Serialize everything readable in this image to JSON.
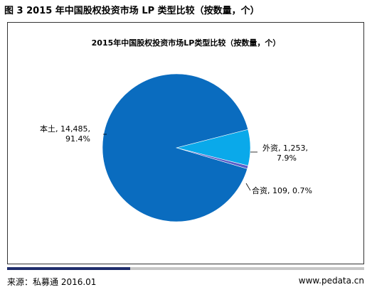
{
  "figure_title": "图 3 2015 年中国股权投资市场 LP 类型比较（按数量，个）",
  "chart_data": {
    "type": "pie",
    "title": "2015年中国股权投资市场LP类型比较（按数量，个）",
    "slices": [
      {
        "label": "本土",
        "value": 14485,
        "value_text": "14,485",
        "percent_text": "91.4%",
        "color": "#0a6cbf"
      },
      {
        "label": "外资",
        "value": 1253,
        "value_text": "1,253",
        "percent_text": "7.9%",
        "color": "#0aa9ea"
      },
      {
        "label": "合资",
        "value": 109,
        "value_text": "109",
        "percent_text": "0.7%",
        "color": "#5a5ec9"
      }
    ],
    "legend": "none"
  },
  "footer": {
    "source": "来源：私募通  2016.01",
    "website": "www.pedata.cn"
  }
}
